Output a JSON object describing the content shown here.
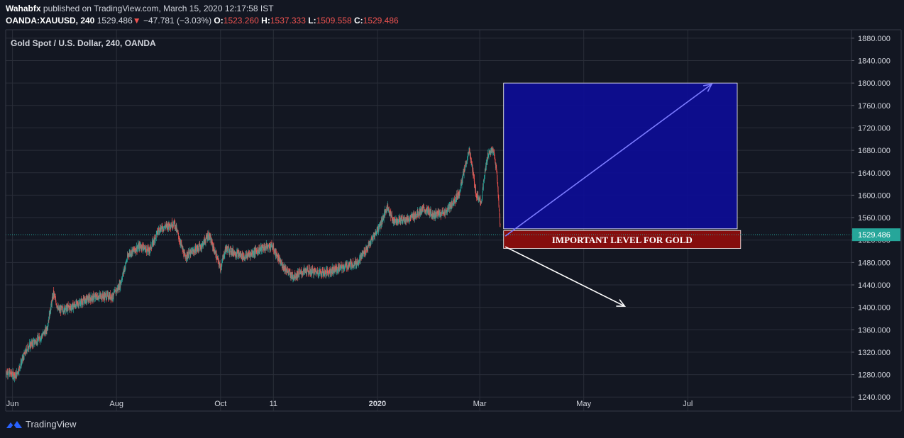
{
  "header": {
    "author": "Wahabfx",
    "published_text": "published on TradingView.com, March 15, 2020 12:17:58 IST",
    "symbol": "OANDA:XAUUSD, 240",
    "last": "1529.486",
    "change_arrow": "▼",
    "change": "−47.781 (−3.03%)",
    "o_label": "O:",
    "o_value": "1523.260",
    "h_label": "H:",
    "h_value": "1537.333",
    "l_label": "L:",
    "l_value": "1509.558",
    "c_label": "C:",
    "c_value": "1529.486"
  },
  "chart_data": {
    "type": "candlestick",
    "title": "Gold Spot / U.S. Dollar, 240, OANDA",
    "ylim": [
      1215,
      1895
    ],
    "y_ticks": [
      "1240.000",
      "1280.000",
      "1320.000",
      "1360.000",
      "1400.000",
      "1440.000",
      "1480.000",
      "1520.000",
      "1560.000",
      "1600.000",
      "1640.000",
      "1680.000",
      "1720.000",
      "1760.000",
      "1800.000",
      "1840.000",
      "1880.000"
    ],
    "x_labels": [
      "Jun",
      "Aug",
      "Oct",
      "11",
      "2020",
      "Mar",
      "May",
      "Jul"
    ],
    "x_label_dates": [
      "2019-06-01",
      "2019-08-01",
      "2019-10-01",
      "2019-11-01",
      "2020-01-01",
      "2020-03-01",
      "2020-05-01",
      "2020-07-01"
    ],
    "x_range": [
      "2019-05-28",
      "2020-10-05"
    ],
    "price_path": [
      {
        "date": "2019-05-28",
        "price": 1285
      },
      {
        "date": "2019-06-03",
        "price": 1278
      },
      {
        "date": "2019-06-10",
        "price": 1330
      },
      {
        "date": "2019-06-17",
        "price": 1345
      },
      {
        "date": "2019-06-21",
        "price": 1360
      },
      {
        "date": "2019-06-25",
        "price": 1425
      },
      {
        "date": "2019-06-28",
        "price": 1395
      },
      {
        "date": "2019-07-05",
        "price": 1400
      },
      {
        "date": "2019-07-15",
        "price": 1415
      },
      {
        "date": "2019-07-22",
        "price": 1420
      },
      {
        "date": "2019-07-30",
        "price": 1420
      },
      {
        "date": "2019-08-03",
        "price": 1440
      },
      {
        "date": "2019-08-08",
        "price": 1495
      },
      {
        "date": "2019-08-15",
        "price": 1510
      },
      {
        "date": "2019-08-20",
        "price": 1500
      },
      {
        "date": "2019-08-26",
        "price": 1540
      },
      {
        "date": "2019-09-04",
        "price": 1550
      },
      {
        "date": "2019-09-10",
        "price": 1490
      },
      {
        "date": "2019-09-20",
        "price": 1510
      },
      {
        "date": "2019-09-24",
        "price": 1530
      },
      {
        "date": "2019-10-01",
        "price": 1470
      },
      {
        "date": "2019-10-04",
        "price": 1505
      },
      {
        "date": "2019-10-15",
        "price": 1490
      },
      {
        "date": "2019-10-25",
        "price": 1505
      },
      {
        "date": "2019-10-31",
        "price": 1510
      },
      {
        "date": "2019-11-05",
        "price": 1480
      },
      {
        "date": "2019-11-12",
        "price": 1455
      },
      {
        "date": "2019-11-20",
        "price": 1465
      },
      {
        "date": "2019-12-01",
        "price": 1462
      },
      {
        "date": "2019-12-10",
        "price": 1470
      },
      {
        "date": "2019-12-20",
        "price": 1480
      },
      {
        "date": "2019-12-27",
        "price": 1510
      },
      {
        "date": "2020-01-03",
        "price": 1550
      },
      {
        "date": "2020-01-07",
        "price": 1580
      },
      {
        "date": "2020-01-10",
        "price": 1555
      },
      {
        "date": "2020-01-20",
        "price": 1558
      },
      {
        "date": "2020-01-28",
        "price": 1575
      },
      {
        "date": "2020-02-03",
        "price": 1565
      },
      {
        "date": "2020-02-10",
        "price": 1570
      },
      {
        "date": "2020-02-14",
        "price": 1585
      },
      {
        "date": "2020-02-18",
        "price": 1605
      },
      {
        "date": "2020-02-21",
        "price": 1645
      },
      {
        "date": "2020-02-24",
        "price": 1680
      },
      {
        "date": "2020-02-26",
        "price": 1640
      },
      {
        "date": "2020-02-28",
        "price": 1600
      },
      {
        "date": "2020-03-02",
        "price": 1590
      },
      {
        "date": "2020-03-04",
        "price": 1640
      },
      {
        "date": "2020-03-06",
        "price": 1675
      },
      {
        "date": "2020-03-09",
        "price": 1680
      },
      {
        "date": "2020-03-11",
        "price": 1640
      },
      {
        "date": "2020-03-13",
        "price": 1545
      },
      {
        "date": "2020-03-13",
        "price": 1529.486
      }
    ],
    "last_price_label": "1529.486",
    "annotation_box_label": "IMPORTANT LEVEL FOR GOLD",
    "target_box": {
      "date_from": "2020-03-15",
      "date_to": "2020-07-30",
      "price_from": 1540,
      "price_to": 1800
    },
    "level_box": {
      "date_from": "2020-03-15",
      "date_to": "2020-08-01",
      "price_from": 1505,
      "price_to": 1537
    },
    "arrow_up": {
      "from": {
        "date": "2020-03-16",
        "price": 1527
      },
      "to": {
        "date": "2020-07-15",
        "price": 1798
      }
    },
    "arrow_down": {
      "from": {
        "date": "2020-03-16",
        "price": 1508
      },
      "to": {
        "date": "2020-05-25",
        "price": 1402
      }
    },
    "colors": {
      "bg": "#131722",
      "grid": "#2a2e39",
      "up": "#26a69a",
      "down": "#ef5350",
      "target_box": "#0d0d96",
      "level_box": "#8b0d0d",
      "last_price": "#26a69a",
      "arrow_up": "#7b7bff",
      "arrow_down": "#ffffff"
    }
  },
  "footer": {
    "brand": "TradingView",
    "logo_icon": "tradingview-logo-icon"
  }
}
